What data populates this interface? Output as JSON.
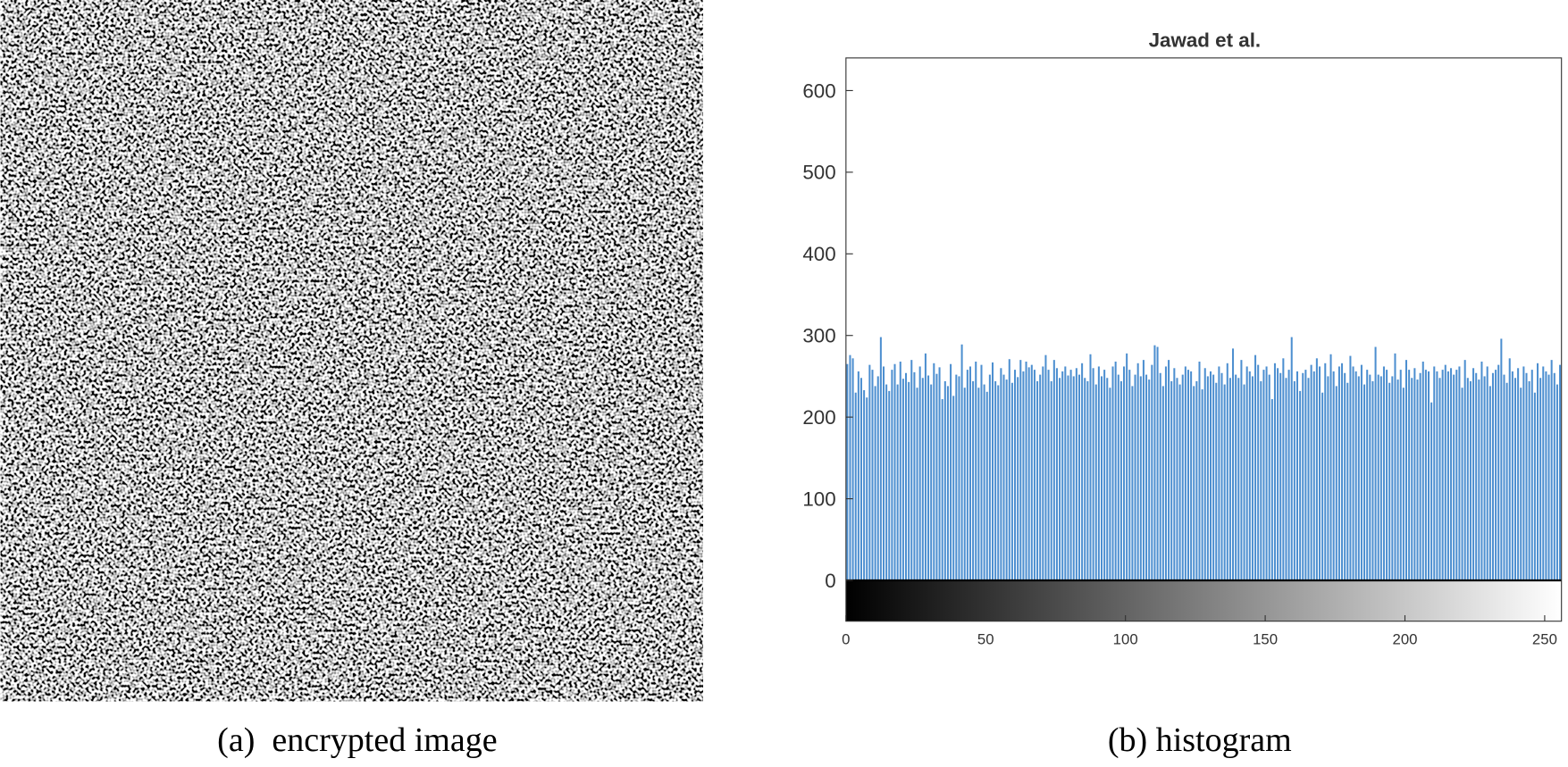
{
  "captions": {
    "a": "(a)  encrypted image",
    "b": "(b) histogram"
  },
  "chart_data": {
    "type": "bar",
    "title": "Jawad et al.",
    "color": "#4d8fd0",
    "x": [
      0,
      1,
      2,
      3,
      4,
      5,
      6,
      7,
      8,
      9,
      10,
      11,
      12,
      13,
      14,
      15,
      16,
      17,
      18,
      19,
      20,
      21,
      22,
      23,
      24,
      25,
      26,
      27,
      28,
      29,
      30,
      31,
      32,
      33,
      34,
      35,
      36,
      37,
      38,
      39,
      40,
      41,
      42,
      43,
      44,
      45,
      46,
      47,
      48,
      49,
      50,
      51,
      52,
      53,
      54,
      55,
      56,
      57,
      58,
      59,
      60,
      61,
      62,
      63,
      64,
      65,
      66,
      67,
      68,
      69,
      70,
      71,
      72,
      73,
      74,
      75,
      76,
      77,
      78,
      79,
      80,
      81,
      82,
      83,
      84,
      85,
      86,
      87,
      88,
      89,
      90,
      91,
      92,
      93,
      94,
      95,
      96,
      97,
      98,
      99,
      100,
      101,
      102,
      103,
      104,
      105,
      106,
      107,
      108,
      109,
      110,
      111,
      112,
      113,
      114,
      115,
      116,
      117,
      118,
      119,
      120,
      121,
      122,
      123,
      124,
      125,
      126,
      127,
      128,
      129,
      130,
      131,
      132,
      133,
      134,
      135,
      136,
      137,
      138,
      139,
      140,
      141,
      142,
      143,
      144,
      145,
      146,
      147,
      148,
      149,
      150,
      151,
      152,
      153,
      154,
      155,
      156,
      157,
      158,
      159,
      160,
      161,
      162,
      163,
      164,
      165,
      166,
      167,
      168,
      169,
      170,
      171,
      172,
      173,
      174,
      175,
      176,
      177,
      178,
      179,
      180,
      181,
      182,
      183,
      184,
      185,
      186,
      187,
      188,
      189,
      190,
      191,
      192,
      193,
      194,
      195,
      196,
      197,
      198,
      199,
      200,
      201,
      202,
      203,
      204,
      205,
      206,
      207,
      208,
      209,
      210,
      211,
      212,
      213,
      214,
      215,
      216,
      217,
      218,
      219,
      220,
      221,
      222,
      223,
      224,
      225,
      226,
      227,
      228,
      229,
      230,
      231,
      232,
      233,
      234,
      235,
      236,
      237,
      238,
      239,
      240,
      241,
      242,
      243,
      244,
      245,
      246,
      247,
      248,
      249,
      250,
      251,
      252,
      253,
      254,
      255
    ],
    "values": [
      265,
      276,
      272,
      230,
      256,
      248,
      233,
      224,
      264,
      258,
      238,
      250,
      298,
      262,
      240,
      232,
      258,
      265,
      240,
      268,
      247,
      254,
      243,
      270,
      255,
      236,
      262,
      248,
      278,
      251,
      240,
      266,
      253,
      261,
      222,
      244,
      238,
      265,
      226,
      252,
      250,
      289,
      236,
      258,
      262,
      244,
      268,
      236,
      264,
      240,
      231,
      252,
      267,
      244,
      239,
      260,
      252,
      246,
      271,
      242,
      258,
      249,
      270,
      256,
      268,
      261,
      264,
      258,
      244,
      252,
      262,
      276,
      258,
      244,
      270,
      260,
      248,
      256,
      262,
      251,
      258,
      250,
      260,
      252,
      266,
      248,
      244,
      277,
      260,
      240,
      262,
      250,
      258,
      248,
      236,
      262,
      268,
      252,
      244,
      262,
      278,
      258,
      238,
      252,
      266,
      250,
      270,
      252,
      246,
      264,
      288,
      286,
      254,
      238,
      262,
      270,
      244,
      260,
      248,
      240,
      252,
      262,
      258,
      256,
      238,
      244,
      268,
      234,
      260,
      250,
      256,
      252,
      242,
      262,
      254,
      240,
      266,
      248,
      284,
      252,
      248,
      270,
      240,
      262,
      256,
      250,
      276,
      264,
      244,
      258,
      262,
      252,
      222,
      266,
      260,
      254,
      272,
      248,
      258,
      298,
      244,
      256,
      232,
      254,
      258,
      248,
      264,
      256,
      272,
      262,
      230,
      266,
      250,
      277,
      256,
      238,
      262,
      266,
      254,
      242,
      275,
      262,
      256,
      250,
      264,
      240,
      258,
      252,
      244,
      286,
      252,
      250,
      262,
      258,
      242,
      250,
      278,
      246,
      258,
      236,
      270,
      258,
      248,
      260,
      246,
      254,
      268,
      258,
      256,
      218,
      262,
      256,
      248,
      258,
      264,
      256,
      260,
      252,
      258,
      262,
      236,
      270,
      248,
      244,
      260,
      254,
      246,
      268,
      250,
      262,
      238,
      254,
      258,
      264,
      296,
      252,
      242,
      272,
      256,
      248,
      260,
      236,
      262,
      254,
      244,
      258,
      230,
      266,
      248,
      262,
      256,
      252,
      270,
      254,
      240,
      264
    ],
    "xlim": [
      0,
      256
    ],
    "ylim": [
      -50,
      640
    ],
    "xticks": [
      0,
      50,
      100,
      150,
      200,
      250
    ],
    "yticks": [
      0,
      100,
      200,
      300,
      400,
      500,
      600
    ]
  }
}
